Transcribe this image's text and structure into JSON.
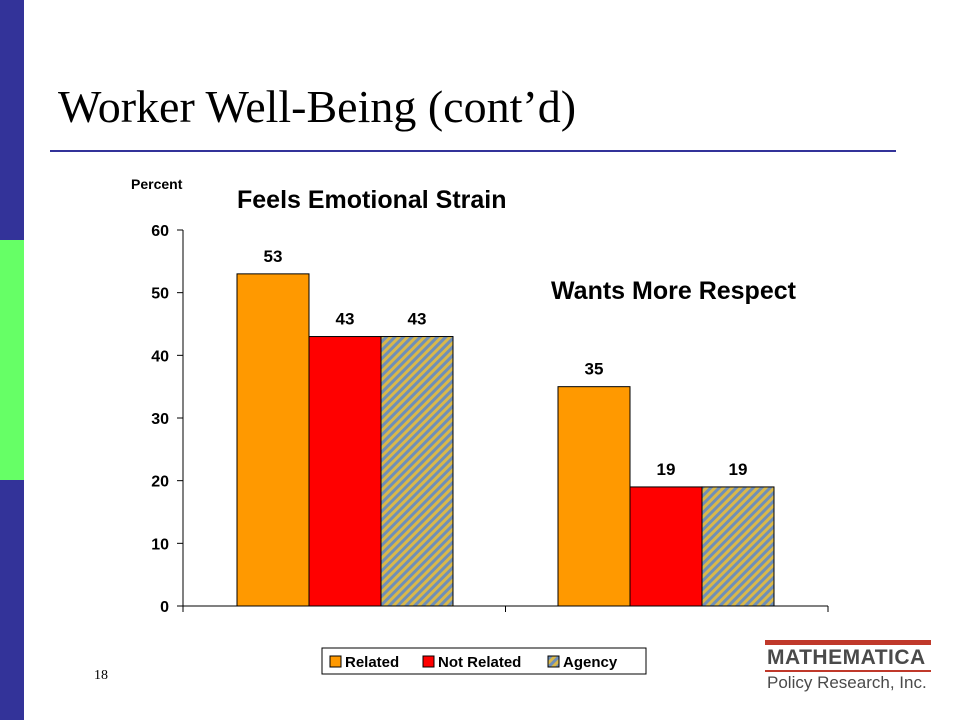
{
  "slide": {
    "title": "Worker Well-Being (cont’d)",
    "number": "18",
    "accent_navy": "#333399",
    "accent_green": "#66ff66"
  },
  "logo": {
    "name": "MATHEMATICA",
    "subtitle": "Policy Research, Inc.",
    "accent": "#c0392b"
  },
  "chart_data": {
    "type": "bar",
    "ylabel": "Percent",
    "xlabel": "",
    "ylim": [
      0,
      60
    ],
    "yticks": [
      0,
      10,
      20,
      30,
      40,
      50,
      60
    ],
    "grid": false,
    "legend_position": "bottom",
    "categories": [
      "Feels Emotional Strain",
      "Wants More Respect"
    ],
    "series": [
      {
        "name": "Related",
        "values": [
          53,
          35
        ],
        "color": "#ff9900",
        "pattern": "solid"
      },
      {
        "name": "Not Related",
        "values": [
          43,
          19
        ],
        "color": "#ff0000",
        "pattern": "solid"
      },
      {
        "name": "Agency",
        "values": [
          43,
          19
        ],
        "color": "#99b3cc",
        "pattern": "diagonal-hatch"
      }
    ],
    "data_labels": [
      [
        "53",
        "35"
      ],
      [
        "43",
        "19"
      ],
      [
        "43",
        "19"
      ]
    ]
  }
}
